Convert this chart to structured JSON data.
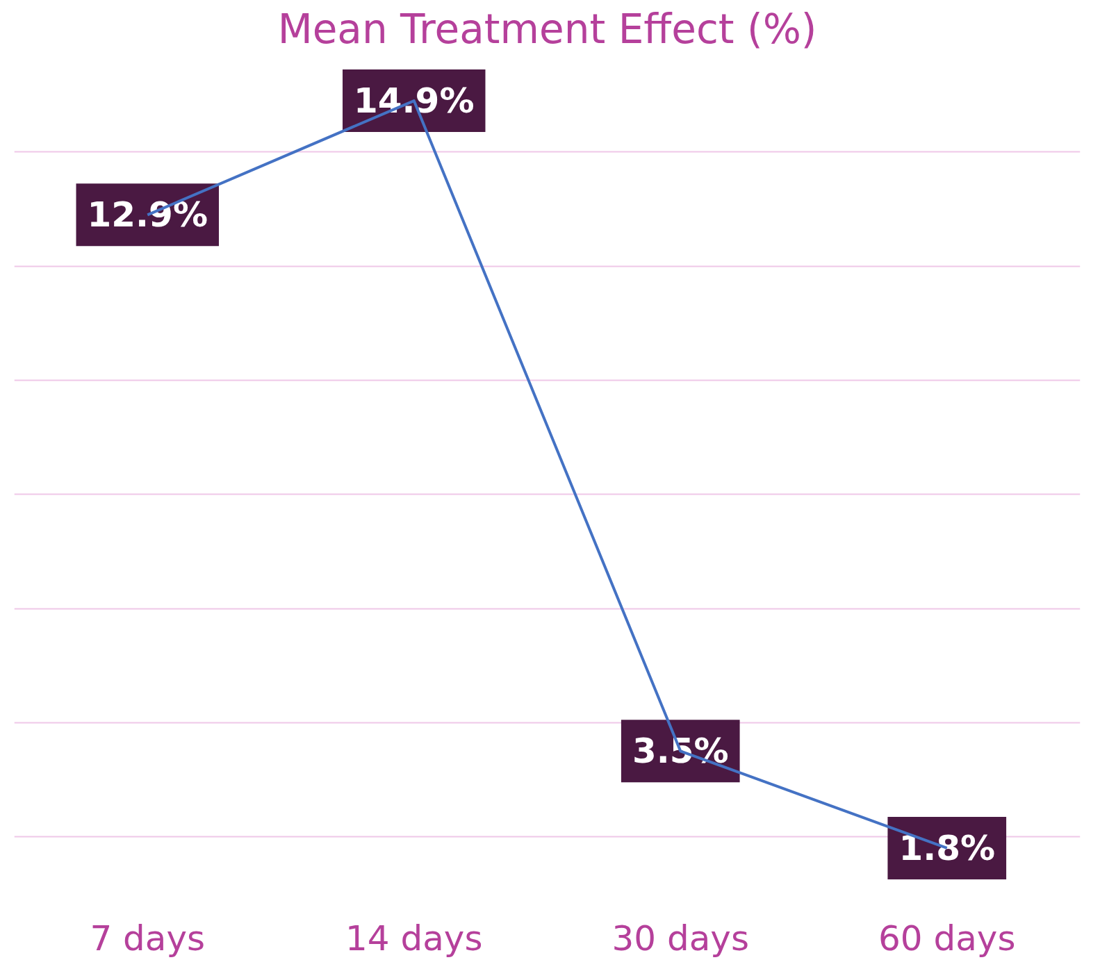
{
  "chart_data": {
    "type": "line",
    "title": "Mean Treatment Effect (%)",
    "categories": [
      "7 days",
      "14 days",
      "30 days",
      "60 days"
    ],
    "series": [
      {
        "color": "#4472c4",
        "values": [
          12.9,
          14.9,
          3.5,
          1.8
        ],
        "value_labels": [
          "12.9%",
          "14.9%",
          "3.5%",
          "1.8%"
        ]
      }
    ],
    "tick_labels": "x",
    "grid": "y",
    "line_style": "solid"
  }
}
